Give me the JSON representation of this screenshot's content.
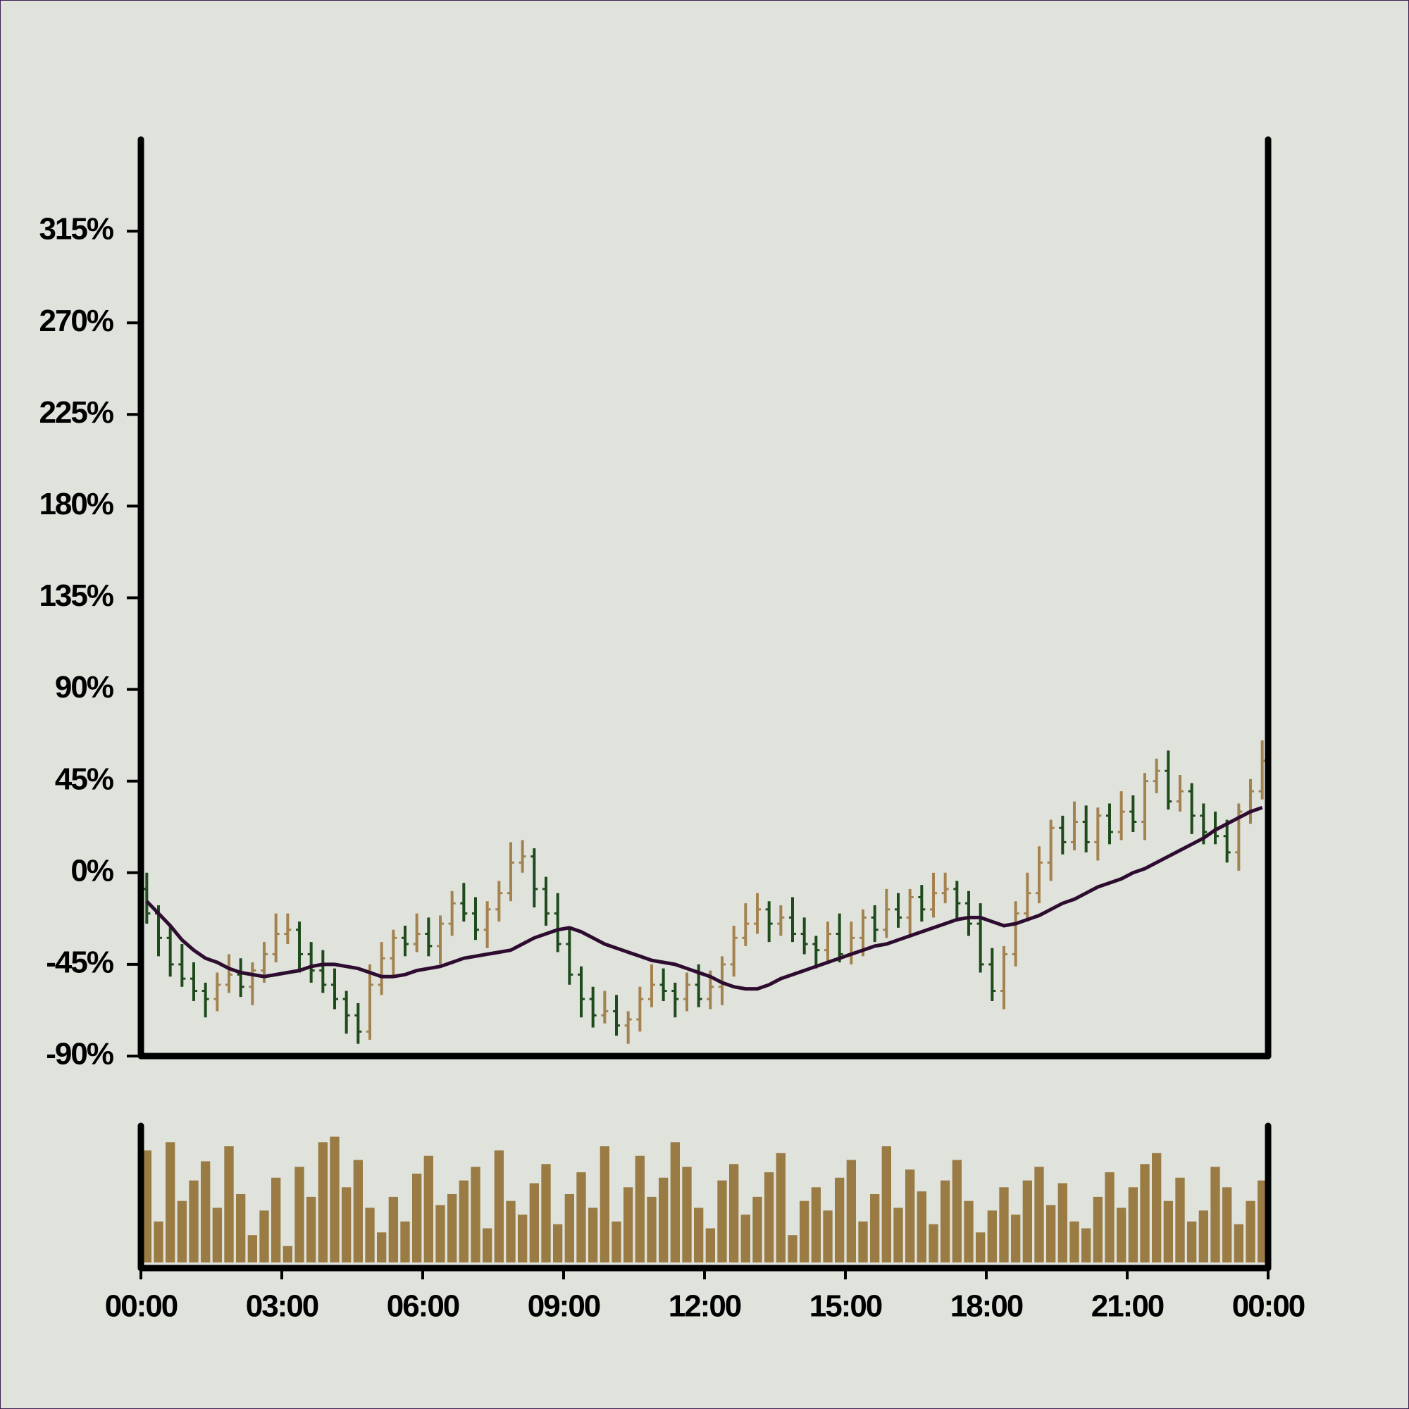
{
  "chart_data": {
    "type": "ohlc",
    "xlim": [
      0,
      24
    ],
    "xticks": [
      {
        "value": 0,
        "label": "00:00"
      },
      {
        "value": 3,
        "label": "03:00"
      },
      {
        "value": 6,
        "label": "06:00"
      },
      {
        "value": 9,
        "label": "09:00"
      },
      {
        "value": 12,
        "label": "12:00"
      },
      {
        "value": 15,
        "label": "15:00"
      },
      {
        "value": 18,
        "label": "18:00"
      },
      {
        "value": 21,
        "label": "21:00"
      },
      {
        "value": 24,
        "label": "00:00"
      }
    ],
    "ylim": [
      -90,
      360
    ],
    "yticks": [
      {
        "value": -90,
        "label": "-90%"
      },
      {
        "value": -45,
        "label": "-45%"
      },
      {
        "value": 0,
        "label": "0%"
      },
      {
        "value": 45,
        "label": "45%"
      },
      {
        "value": 90,
        "label": "90%"
      },
      {
        "value": 135,
        "label": "135%"
      },
      {
        "value": 180,
        "label": "180%"
      },
      {
        "value": 225,
        "label": "225%"
      },
      {
        "value": 270,
        "label": "270%"
      },
      {
        "value": 315,
        "label": "315%"
      }
    ],
    "volume_ylim": [
      0,
      100
    ],
    "up_color": "#a4824f",
    "down_color": "#1f4a1c",
    "volume_color": "#9a7b44",
    "ma_color": "#2e0c30",
    "x": [
      0.125,
      0.375,
      0.625,
      0.875,
      1.125,
      1.375,
      1.625,
      1.875,
      2.125,
      2.375,
      2.625,
      2.875,
      3.125,
      3.375,
      3.625,
      3.875,
      4.125,
      4.375,
      4.625,
      4.875,
      5.125,
      5.375,
      5.625,
      5.875,
      6.125,
      6.375,
      6.625,
      6.875,
      7.125,
      7.375,
      7.625,
      7.875,
      8.125,
      8.375,
      8.625,
      8.875,
      9.125,
      9.375,
      9.625,
      9.875,
      10.125,
      10.375,
      10.625,
      10.875,
      11.125,
      11.375,
      11.625,
      11.875,
      12.125,
      12.375,
      12.625,
      12.875,
      13.125,
      13.375,
      13.625,
      13.875,
      14.125,
      14.375,
      14.625,
      14.875,
      15.125,
      15.375,
      15.625,
      15.875,
      16.125,
      16.375,
      16.625,
      16.875,
      17.125,
      17.375,
      17.625,
      17.875,
      18.125,
      18.375,
      18.625,
      18.875,
      19.125,
      19.375,
      19.625,
      19.875,
      20.125,
      20.375,
      20.625,
      20.875,
      21.125,
      21.375,
      21.625,
      21.875,
      22.125,
      22.375,
      22.625,
      22.875,
      23.125,
      23.375,
      23.625,
      23.875
    ],
    "open": [
      -8,
      -20,
      -32,
      -45,
      -52,
      -58,
      -62,
      -55,
      -50,
      -56,
      -48,
      -40,
      -30,
      -28,
      -40,
      -48,
      -55,
      -62,
      -70,
      -78,
      -55,
      -42,
      -32,
      -35,
      -30,
      -36,
      -25,
      -15,
      -20,
      -28,
      -18,
      -10,
      5,
      8,
      -8,
      -20,
      -35,
      -50,
      -62,
      -70,
      -68,
      -75,
      -72,
      -62,
      -55,
      -58,
      -62,
      -55,
      -62,
      -56,
      -45,
      -32,
      -25,
      -18,
      -25,
      -22,
      -30,
      -35,
      -38,
      -30,
      -40,
      -32,
      -22,
      -28,
      -18,
      -22,
      -12,
      -18,
      -10,
      -8,
      -15,
      -25,
      -45,
      -58,
      -40,
      -20,
      -10,
      5,
      22,
      15,
      25,
      15,
      28,
      20,
      30,
      25,
      45,
      50,
      35,
      40,
      28,
      20,
      18,
      10,
      30,
      40
    ],
    "high": [
      0,
      -16,
      -26,
      -35,
      -44,
      -54,
      -49,
      -40,
      -42,
      -44,
      -34,
      -20,
      -20,
      -24,
      -34,
      -38,
      -47,
      -58,
      -64,
      -45,
      -34,
      -28,
      -26,
      -20,
      -22,
      -21,
      -9,
      -5,
      -12,
      -14,
      -4,
      15,
      16,
      12,
      -2,
      -10,
      -27,
      -46,
      -56,
      -58,
      -60,
      -68,
      -56,
      -45,
      -47,
      -54,
      -49,
      -45,
      -48,
      -41,
      -26,
      -15,
      -10,
      -14,
      -16,
      -12,
      -22,
      -31,
      -24,
      -20,
      -24,
      -18,
      -16,
      -8,
      -10,
      -8,
      -6,
      0,
      0,
      -4,
      -9,
      -15,
      -37,
      -36,
      -14,
      0,
      13,
      26,
      28,
      35,
      33,
      32,
      34,
      40,
      38,
      49,
      56,
      60,
      48,
      44,
      34,
      30,
      26,
      34,
      46,
      65
    ],
    "low": [
      -25,
      -41,
      -51,
      -56,
      -63,
      -71,
      -68,
      -59,
      -61,
      -65,
      -54,
      -44,
      -35,
      -49,
      -54,
      -59,
      -67,
      -79,
      -84,
      -82,
      -60,
      -51,
      -41,
      -39,
      -41,
      -45,
      -31,
      -24,
      -33,
      -37,
      -24,
      -14,
      0,
      -17,
      -26,
      -39,
      -55,
      -71,
      -76,
      -74,
      -80,
      -84,
      -78,
      -66,
      -63,
      -71,
      -68,
      -66,
      -67,
      -65,
      -51,
      -36,
      -30,
      -34,
      -31,
      -34,
      -40,
      -47,
      -44,
      -44,
      -45,
      -41,
      -34,
      -32,
      -27,
      -31,
      -24,
      -22,
      -15,
      -24,
      -31,
      -49,
      -63,
      -67,
      -46,
      -24,
      -15,
      -4,
      9,
      11,
      10,
      6,
      14,
      16,
      20,
      16,
      39,
      31,
      30,
      19,
      14,
      14,
      5,
      1,
      24,
      36
    ],
    "close": [
      -20,
      -32,
      -45,
      -52,
      -58,
      -62,
      -55,
      -50,
      -56,
      -48,
      -40,
      -30,
      -28,
      -40,
      -48,
      -55,
      -62,
      -70,
      -78,
      -55,
      -42,
      -32,
      -35,
      -30,
      -36,
      -25,
      -15,
      -20,
      -28,
      -18,
      -10,
      5,
      8,
      -8,
      -20,
      -35,
      -50,
      -62,
      -70,
      -68,
      -75,
      -72,
      -62,
      -55,
      -58,
      -62,
      -55,
      -62,
      -56,
      -45,
      -32,
      -25,
      -18,
      -25,
      -22,
      -30,
      -35,
      -38,
      -30,
      -40,
      -32,
      -22,
      -28,
      -18,
      -22,
      -12,
      -18,
      -10,
      -8,
      -15,
      -25,
      -45,
      -58,
      -40,
      -20,
      -10,
      5,
      22,
      15,
      25,
      15,
      28,
      20,
      30,
      25,
      45,
      50,
      35,
      40,
      28,
      20,
      18,
      10,
      30,
      40,
      55
    ],
    "moving_average": [
      -14,
      -20,
      -26,
      -33,
      -38,
      -42,
      -44,
      -47,
      -49,
      -50,
      -51,
      -50,
      -49,
      -48,
      -46,
      -45,
      -45,
      -46,
      -47,
      -49,
      -51,
      -51,
      -50,
      -48,
      -47,
      -46,
      -44,
      -42,
      -41,
      -40,
      -39,
      -38,
      -35,
      -32,
      -30,
      -28,
      -27,
      -29,
      -32,
      -35,
      -37,
      -39,
      -41,
      -43,
      -44,
      -45,
      -47,
      -49,
      -51,
      -54,
      -56,
      -57,
      -57,
      -55,
      -52,
      -50,
      -48,
      -46,
      -44,
      -42,
      -40,
      -38,
      -36,
      -35,
      -33,
      -31,
      -29,
      -27,
      -25,
      -23,
      -22,
      -22,
      -24,
      -26,
      -25,
      -23,
      -21,
      -18,
      -15,
      -13,
      -10,
      -7,
      -5,
      -3,
      0,
      2,
      5,
      8,
      11,
      14,
      17,
      21,
      24,
      27,
      30,
      32
    ],
    "volume": [
      82,
      30,
      88,
      45,
      60,
      74,
      40,
      85,
      50,
      20,
      38,
      62,
      12,
      70,
      48,
      88,
      92,
      55,
      75,
      40,
      22,
      48,
      30,
      65,
      78,
      42,
      50,
      60,
      70,
      25,
      82,
      45,
      35,
      58,
      72,
      28,
      50,
      66,
      40,
      85,
      30,
      55,
      78,
      48,
      62,
      88,
      70,
      40,
      25,
      60,
      72,
      35,
      48,
      66,
      80,
      20,
      45,
      55,
      38,
      62,
      75,
      30,
      50,
      85,
      40,
      68,
      52,
      28,
      60,
      75,
      45,
      22,
      38,
      55,
      35,
      60,
      70,
      42,
      58,
      30,
      25,
      48,
      66,
      40,
      55,
      72,
      80,
      45,
      62,
      30,
      38,
      70,
      55,
      28,
      45,
      60
    ]
  }
}
